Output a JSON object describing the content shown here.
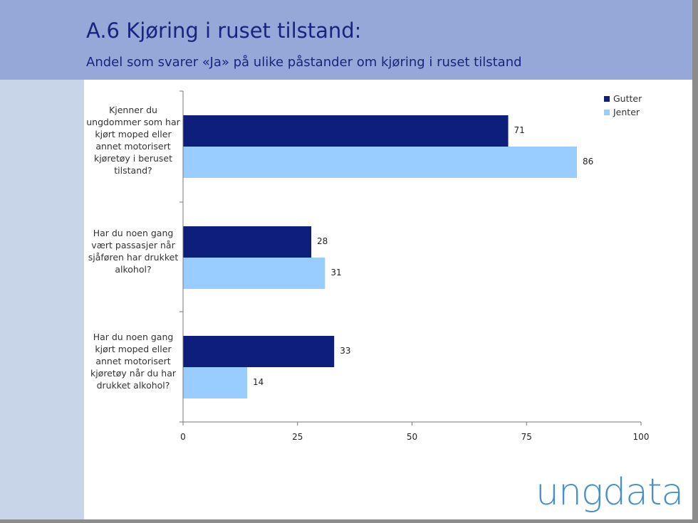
{
  "header": {
    "title": "A.6 Kjøring i ruset tilstand:",
    "subtitle": "Andel som svarer «Ja» på ulike påstander om kjøring i ruset tilstand"
  },
  "logo": "ungdata",
  "chart_data": {
    "type": "bar",
    "orientation": "horizontal",
    "categories": [
      "Kjenner du ungdommer som har kjørt moped eller annet motorisert kjøretøy i beruset tilstand?",
      "Har du noen gang vært passasjer når sjåføren har drukket alkohol?",
      "Har du noen gang kjørt moped eller annet motorisert kjøretøy når du har drukket alkohol?"
    ],
    "series": [
      {
        "name": "Gutter",
        "color": "#0d1f7a",
        "values": [
          71,
          28,
          33
        ]
      },
      {
        "name": "Jenter",
        "color": "#99ccff",
        "values": [
          86,
          31,
          14
        ]
      }
    ],
    "xlim": [
      0,
      100
    ],
    "xticks": [
      "0",
      "25",
      "50",
      "75",
      "100"
    ],
    "legend": "top-right",
    "grid": false
  }
}
